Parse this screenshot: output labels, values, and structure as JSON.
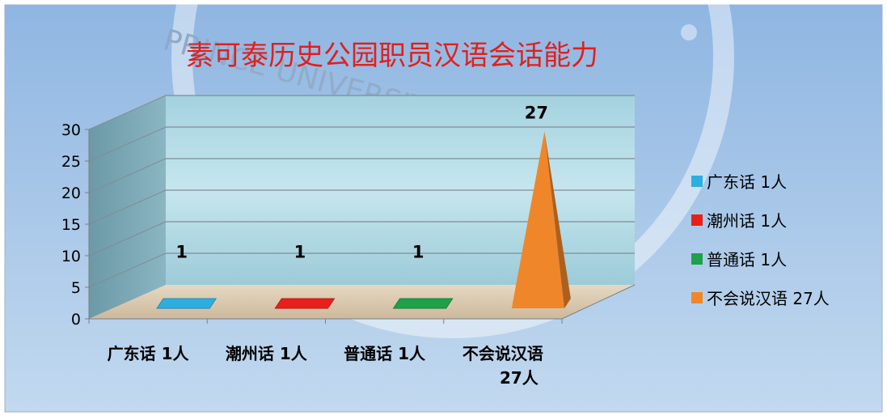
{
  "chart_data": {
    "type": "bar",
    "bar_shape": "pyramid-3d",
    "title": "素可泰历史公园职员汉语会话能力",
    "categories": [
      "广东话 1人",
      "潮州话 1人",
      "普通话 1人",
      "不会说汉语 27人"
    ],
    "category_label_lines": [
      [
        "广东话 1人"
      ],
      [
        "潮州话 1人"
      ],
      [
        "普通话 1人"
      ],
      [
        "不会说汉语",
        "27人"
      ]
    ],
    "values": [
      1,
      1,
      1,
      27
    ],
    "data_labels": [
      "1",
      "1",
      "1",
      "27"
    ],
    "colors": [
      "#2eaee0",
      "#e8201c",
      "#1fa04a",
      "#f0862a"
    ],
    "ylim": [
      0,
      30
    ],
    "yticks": [
      0,
      5,
      10,
      15,
      20,
      25,
      30
    ],
    "ytick_labels": [
      "0",
      "5",
      "10",
      "15",
      "20",
      "25",
      "30"
    ],
    "xlabel": "",
    "ylabel": "",
    "grid": true,
    "legend": {
      "position": "right",
      "entries": [
        "广东话 1人",
        "潮州话 1人",
        "普通话 1人",
        "不会说汉语 27人"
      ]
    },
    "title_color": "#e0201c",
    "background_color": "#a9c8e8",
    "wall_color": "#b8dde8",
    "floor_color": "#dcccb4",
    "watermark": "PRINCE UNIVERSITY"
  }
}
